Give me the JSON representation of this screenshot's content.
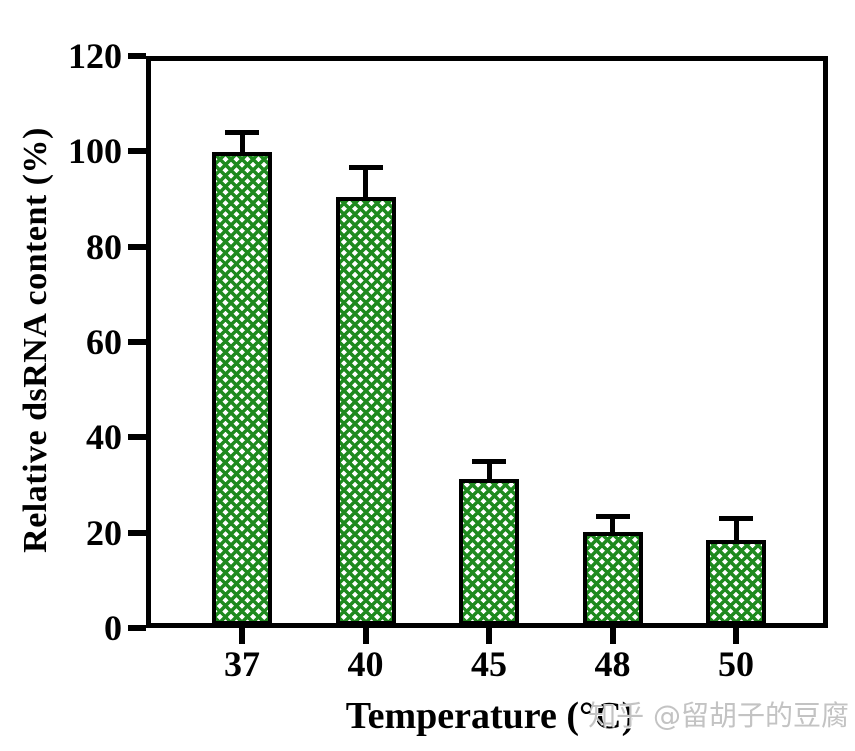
{
  "chart_data": {
    "type": "bar",
    "title": "",
    "xlabel": "Temperature (°C)",
    "ylabel": "Relative dsRNA content (%)",
    "categories": [
      "37",
      "40",
      "45",
      "48",
      "50"
    ],
    "values": [
      99.9,
      90.5,
      31.3,
      20.2,
      18.5
    ],
    "errors_plus": [
      4.2,
      6.2,
      3.7,
      3.3,
      4.5
    ],
    "ylim": [
      0,
      120
    ],
    "yticks": [
      0,
      20,
      40,
      60,
      80,
      100,
      120
    ],
    "grid": false,
    "legend": null,
    "bar_fill_pattern": "diagonal-crosshatch-white-diamonds",
    "bar_pattern_color": "#1f8a1f",
    "bar_border_color": "#000000",
    "axis_color": "#000000",
    "background_color": "#ffffff"
  },
  "watermark": {
    "text": "知乎 @留胡子的豆腐",
    "color": "#c3c3c3"
  }
}
